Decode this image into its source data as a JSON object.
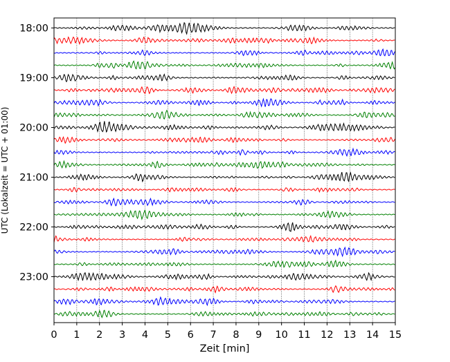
{
  "chart_data": {
    "type": "line",
    "title": "",
    "xlabel": "Zeit  [min]",
    "ylabel": "UTC (Lokalzeit = UTC + 01:00)",
    "xlim": [
      0,
      15
    ],
    "xticks": [
      0,
      1,
      2,
      3,
      4,
      5,
      6,
      7,
      8,
      9,
      10,
      11,
      12,
      13,
      14,
      15
    ],
    "yticks": [
      "18:00",
      "19:00",
      "20:00",
      "21:00",
      "22:00",
      "23:00"
    ],
    "start_time": "18:00",
    "row_minutes": 15,
    "row_count": 24,
    "grid_x": true,
    "grid_style": "dotted",
    "legend": "none",
    "row_colors": [
      "#000000",
      "#ff0000",
      "#0000ff",
      "#008000"
    ]
  }
}
